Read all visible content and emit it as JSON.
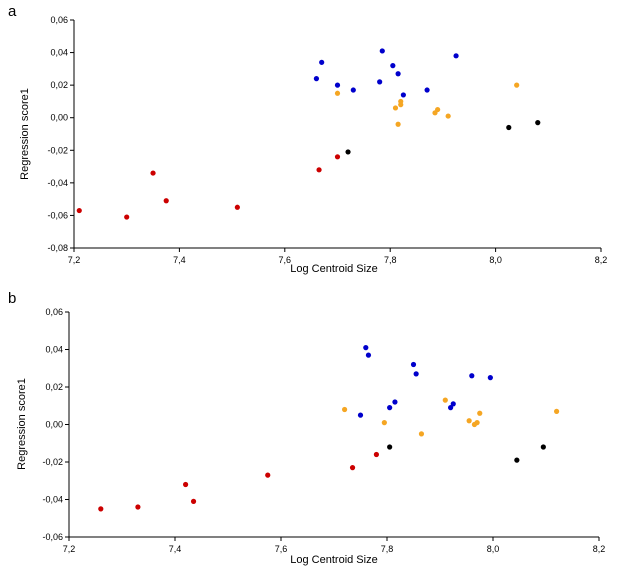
{
  "chart_data": [
    {
      "type": "scatter",
      "panel_label": "a",
      "xlabel": "Log Centroid Size",
      "ylabel": "Regression score1",
      "xlim": [
        7.2,
        8.2
      ],
      "ylim": [
        -0.08,
        0.06
      ],
      "xticks": [
        "7,2",
        "7,4",
        "7,6",
        "7,8",
        "8,0",
        "8,2"
      ],
      "yticks": [
        "0,06",
        "0,04",
        "0,02",
        "0,00",
        "-0,02",
        "-0,04",
        "-0,06",
        "-0,08"
      ],
      "grid": false,
      "legend": "none",
      "series": [
        {
          "color": "#cc0000",
          "points": [
            [
              7.21,
              -0.057
            ],
            [
              7.3,
              -0.061
            ],
            [
              7.35,
              -0.034
            ],
            [
              7.375,
              -0.051
            ],
            [
              7.51,
              -0.055
            ],
            [
              7.665,
              -0.032
            ],
            [
              7.7,
              -0.024
            ]
          ]
        },
        {
          "color": "#000000",
          "points": [
            [
              7.72,
              -0.021
            ],
            [
              8.025,
              -0.006
            ],
            [
              8.08,
              -0.003
            ]
          ]
        },
        {
          "color": "#f5a623",
          "points": [
            [
              7.7,
              0.015
            ],
            [
              7.81,
              0.006
            ],
            [
              7.815,
              -0.004
            ],
            [
              7.82,
              0.008
            ],
            [
              7.82,
              0.01
            ],
            [
              7.885,
              0.003
            ],
            [
              7.89,
              0.005
            ],
            [
              7.91,
              0.001
            ],
            [
              8.04,
              0.02
            ]
          ]
        },
        {
          "color": "#0000cc",
          "points": [
            [
              7.66,
              0.024
            ],
            [
              7.67,
              0.034
            ],
            [
              7.7,
              0.02
            ],
            [
              7.73,
              0.017
            ],
            [
              7.78,
              0.022
            ],
            [
              7.785,
              0.041
            ],
            [
              7.805,
              0.032
            ],
            [
              7.815,
              0.027
            ],
            [
              7.825,
              0.014
            ],
            [
              7.87,
              0.017
            ],
            [
              7.925,
              0.038
            ]
          ]
        }
      ]
    },
    {
      "type": "scatter",
      "panel_label": "b",
      "xlabel": "Log Centroid Size",
      "ylabel": "Regression score1",
      "xlim": [
        7.2,
        8.2
      ],
      "ylim": [
        -0.06,
        0.06
      ],
      "xticks": [
        "7,2",
        "7,4",
        "7,6",
        "7,8",
        "8,0",
        "8,2"
      ],
      "yticks": [
        "0,06",
        "0,04",
        "0,02",
        "0,00",
        "-0,02",
        "-0,04",
        "-0,06"
      ],
      "grid": false,
      "legend": "none",
      "series": [
        {
          "color": "#cc0000",
          "points": [
            [
              7.26,
              -0.045
            ],
            [
              7.33,
              -0.044
            ],
            [
              7.42,
              -0.032
            ],
            [
              7.435,
              -0.041
            ],
            [
              7.575,
              -0.027
            ],
            [
              7.735,
              -0.023
            ],
            [
              7.78,
              -0.016
            ]
          ]
        },
        {
          "color": "#000000",
          "points": [
            [
              7.805,
              -0.012
            ],
            [
              8.045,
              -0.019
            ],
            [
              8.095,
              -0.012
            ]
          ]
        },
        {
          "color": "#f5a623",
          "points": [
            [
              7.72,
              0.008
            ],
            [
              7.795,
              0.001
            ],
            [
              7.865,
              -0.005
            ],
            [
              7.91,
              0.013
            ],
            [
              7.955,
              0.002
            ],
            [
              7.965,
              0.0
            ],
            [
              7.97,
              0.001
            ],
            [
              7.975,
              0.006
            ],
            [
              8.12,
              0.007
            ]
          ]
        },
        {
          "color": "#0000cc",
          "points": [
            [
              7.75,
              0.005
            ],
            [
              7.76,
              0.041
            ],
            [
              7.765,
              0.037
            ],
            [
              7.805,
              0.009
            ],
            [
              7.815,
              0.012
            ],
            [
              7.85,
              0.032
            ],
            [
              7.855,
              0.027
            ],
            [
              7.92,
              0.009
            ],
            [
              7.925,
              0.011
            ],
            [
              7.96,
              0.026
            ],
            [
              7.995,
              0.025
            ]
          ]
        }
      ]
    }
  ]
}
